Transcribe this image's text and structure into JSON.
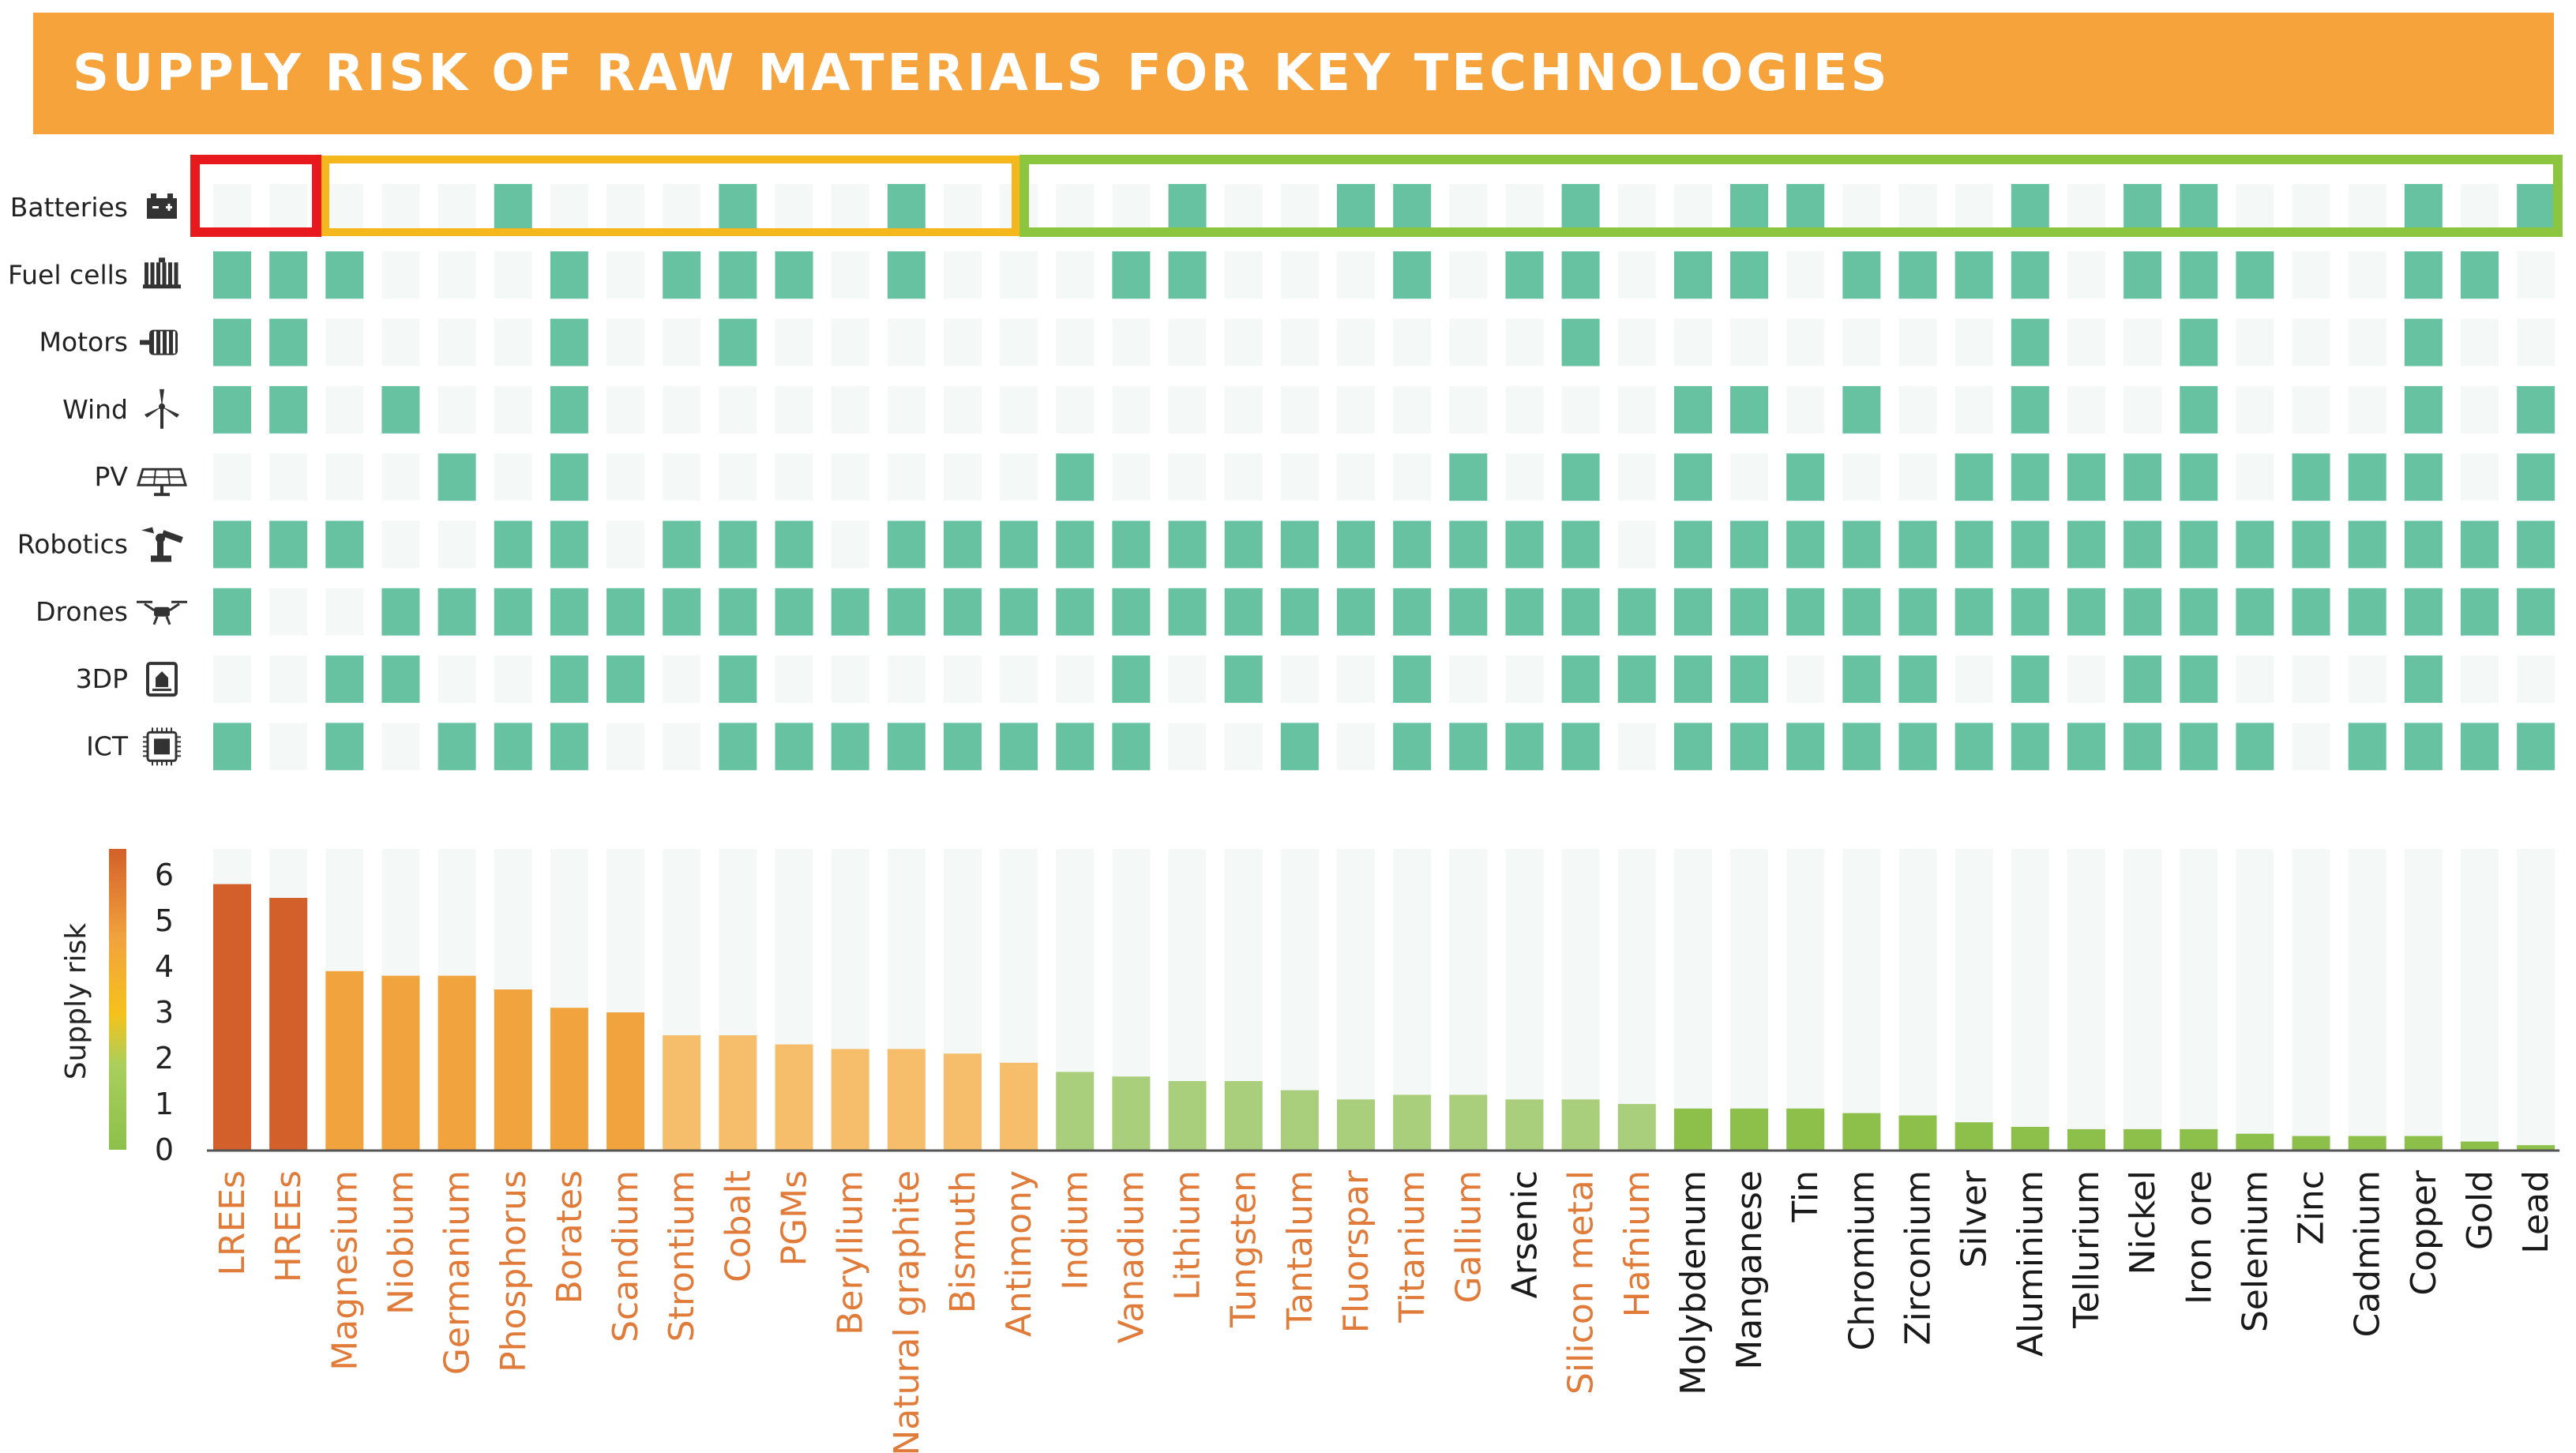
{
  "title": "SUPPLY RISK OF RAW MATERIALS FOR KEY TECHNOLOGIES",
  "colors": {
    "banner": "#f7a33c",
    "cell_on": "#66c2a0",
    "cell_off": "#f4f8f7",
    "box_red": "#e8191c",
    "box_orange": "#f5b81c",
    "box_green": "#8cc63f",
    "label_orange": "#e07b39",
    "label_dark": "#1a1a1a"
  },
  "chart_data": [
    {
      "type": "heatmap",
      "rows": [
        "Batteries",
        "Fuel cells",
        "Motors",
        "Wind",
        "PV",
        "Robotics",
        "Drones",
        "3DP",
        "ICT"
      ],
      "row_icons": [
        "battery-icon",
        "fuel-cell-icon",
        "motor-icon",
        "wind-turbine-icon",
        "solar-panel-icon",
        "robot-arm-icon",
        "drone-icon",
        "3d-printer-icon",
        "chip-icon"
      ],
      "columns": [
        "LREEs",
        "HREEs",
        "Magnesium",
        "Niobium",
        "Germanium",
        "Phosphorus",
        "Borates",
        "Scandium",
        "Strontium",
        "Cobalt",
        "PGMs",
        "Beryllium",
        "Natural graphite",
        "Bismuth",
        "Antimony",
        "Indium",
        "Vanadium",
        "Lithium",
        "Tungsten",
        "Tantalum",
        "Fluorspar",
        "Titanium",
        "Gallium",
        "Arsenic",
        "Silicon metal",
        "Hafnium",
        "Molybdenum",
        "Manganese",
        "Tin",
        "Chromium",
        "Zirconium",
        "Silver",
        "Aluminium",
        "Tellurium",
        "Nickel",
        "Iron ore",
        "Selenium",
        "Zinc",
        "Cadmium",
        "Copper",
        "Gold",
        "Lead"
      ],
      "matrix": [
        [
          0,
          0,
          0,
          0,
          0,
          1,
          0,
          0,
          0,
          1,
          0,
          0,
          1,
          0,
          0,
          0,
          0,
          1,
          0,
          0,
          1,
          1,
          0,
          0,
          1,
          0,
          0,
          1,
          1,
          0,
          0,
          0,
          1,
          0,
          1,
          1,
          0,
          0,
          0,
          1,
          0,
          1
        ],
        [
          1,
          1,
          1,
          0,
          0,
          0,
          1,
          0,
          1,
          1,
          1,
          0,
          1,
          0,
          0,
          0,
          1,
          1,
          0,
          0,
          0,
          1,
          0,
          1,
          1,
          0,
          1,
          1,
          0,
          1,
          1,
          1,
          1,
          0,
          1,
          1,
          1,
          0,
          0,
          1,
          1,
          0
        ],
        [
          1,
          1,
          0,
          0,
          0,
          0,
          1,
          0,
          0,
          1,
          0,
          0,
          0,
          0,
          0,
          0,
          0,
          0,
          0,
          0,
          0,
          0,
          0,
          0,
          1,
          0,
          0,
          0,
          0,
          0,
          0,
          0,
          1,
          0,
          0,
          1,
          0,
          0,
          0,
          1,
          0,
          0
        ],
        [
          1,
          1,
          0,
          1,
          0,
          0,
          1,
          0,
          0,
          0,
          0,
          0,
          0,
          0,
          0,
          0,
          0,
          0,
          0,
          0,
          0,
          0,
          0,
          0,
          0,
          0,
          1,
          1,
          0,
          1,
          0,
          0,
          1,
          0,
          0,
          1,
          0,
          0,
          0,
          1,
          0,
          1
        ],
        [
          0,
          0,
          0,
          0,
          1,
          0,
          1,
          0,
          0,
          0,
          0,
          0,
          0,
          0,
          0,
          1,
          0,
          0,
          0,
          0,
          0,
          0,
          1,
          0,
          1,
          0,
          1,
          0,
          1,
          0,
          0,
          1,
          1,
          1,
          1,
          1,
          0,
          1,
          1,
          1,
          0,
          1
        ],
        [
          1,
          1,
          1,
          0,
          0,
          1,
          1,
          0,
          1,
          1,
          1,
          0,
          1,
          1,
          1,
          1,
          1,
          1,
          1,
          1,
          1,
          1,
          1,
          1,
          1,
          0,
          1,
          1,
          1,
          1,
          1,
          1,
          1,
          1,
          1,
          1,
          1,
          1,
          1,
          1,
          1,
          1
        ],
        [
          1,
          0,
          0,
          1,
          1,
          1,
          1,
          1,
          1,
          1,
          1,
          1,
          1,
          1,
          1,
          1,
          1,
          1,
          1,
          1,
          1,
          1,
          1,
          1,
          1,
          1,
          1,
          1,
          1,
          1,
          1,
          1,
          1,
          1,
          1,
          1,
          1,
          1,
          1,
          1,
          1,
          1
        ],
        [
          0,
          0,
          1,
          1,
          0,
          0,
          1,
          1,
          0,
          1,
          0,
          0,
          0,
          0,
          0,
          0,
          1,
          0,
          1,
          0,
          0,
          1,
          0,
          0,
          1,
          1,
          1,
          1,
          0,
          1,
          1,
          0,
          1,
          0,
          1,
          1,
          0,
          0,
          0,
          1,
          0,
          0
        ],
        [
          1,
          0,
          1,
          0,
          1,
          1,
          1,
          0,
          0,
          1,
          1,
          1,
          1,
          1,
          1,
          1,
          1,
          0,
          0,
          1,
          0,
          1,
          1,
          1,
          1,
          0,
          1,
          1,
          1,
          1,
          1,
          1,
          1,
          1,
          1,
          1,
          1,
          0,
          1,
          1,
          1,
          1
        ]
      ]
    },
    {
      "type": "bar",
      "ylabel": "Supply risk",
      "ylim": [
        0,
        6
      ],
      "yticks": [
        0,
        1,
        2,
        3,
        4,
        5,
        6
      ],
      "grid": false,
      "categories": [
        "LREEs",
        "HREEs",
        "Magnesium",
        "Niobium",
        "Germanium",
        "Phosphorus",
        "Borates",
        "Scandium",
        "Strontium",
        "Cobalt",
        "PGMs",
        "Beryllium",
        "Natural graphite",
        "Bismuth",
        "Antimony",
        "Indium",
        "Vanadium",
        "Lithium",
        "Tungsten",
        "Tantalum",
        "Fluorspar",
        "Titanium",
        "Gallium",
        "Arsenic",
        "Silicon metal",
        "Hafnium",
        "Molybdenum",
        "Manganese",
        "Tin",
        "Chromium",
        "Zirconium",
        "Silver",
        "Aluminium",
        "Tellurium",
        "Nickel",
        "Iron ore",
        "Selenium",
        "Zinc",
        "Cadmium",
        "Copper",
        "Gold",
        "Lead"
      ],
      "values": [
        5.8,
        5.5,
        3.9,
        3.8,
        3.8,
        3.5,
        3.1,
        3.0,
        2.5,
        2.5,
        2.3,
        2.2,
        2.2,
        2.1,
        1.9,
        1.7,
        1.6,
        1.5,
        1.5,
        1.3,
        1.1,
        1.2,
        1.2,
        1.1,
        1.1,
        1.0,
        0.9,
        0.9,
        0.9,
        0.8,
        0.75,
        0.6,
        0.5,
        0.45,
        0.45,
        0.45,
        0.35,
        0.3,
        0.3,
        0.3,
        0.18,
        0.1
      ],
      "bar_colors": [
        "#d3602a",
        "#d3602a",
        "#f1a33d",
        "#f1a33d",
        "#f1a33d",
        "#f1a33d",
        "#f1a33d",
        "#f1a33d",
        "#f6be6a",
        "#f6be6a",
        "#f6be6a",
        "#f6be6a",
        "#f6be6a",
        "#f6be6a",
        "#f6be6a",
        "#a9cf7c",
        "#a9cf7c",
        "#a9cf7c",
        "#a9cf7c",
        "#a9cf7c",
        "#a9cf7c",
        "#a9cf7c",
        "#a9cf7c",
        "#a9cf7c",
        "#a9cf7c",
        "#a9cf7c",
        "#8cc04b",
        "#8cc04b",
        "#8cc04b",
        "#8cc04b",
        "#8cc04b",
        "#8cc04b",
        "#8cc04b",
        "#8cc04b",
        "#8cc04b",
        "#8cc04b",
        "#8cc04b",
        "#8cc04b",
        "#8cc04b",
        "#8cc04b",
        "#8cc04b",
        "#8cc04b"
      ],
      "label_colors": [
        "orange",
        "orange",
        "orange",
        "orange",
        "orange",
        "orange",
        "orange",
        "orange",
        "orange",
        "orange",
        "orange",
        "orange",
        "orange",
        "orange",
        "orange",
        "orange",
        "orange",
        "orange",
        "orange",
        "orange",
        "orange",
        "orange",
        "orange",
        "dark",
        "orange",
        "orange",
        "dark",
        "dark",
        "dark",
        "dark",
        "dark",
        "dark",
        "dark",
        "dark",
        "dark",
        "dark",
        "dark",
        "dark",
        "dark",
        "dark",
        "dark",
        "dark"
      ]
    }
  ]
}
